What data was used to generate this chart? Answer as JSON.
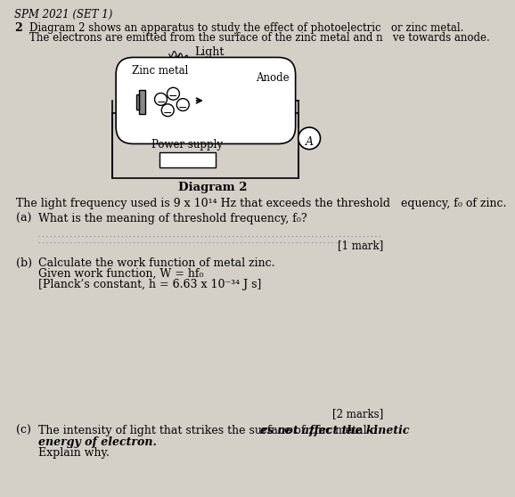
{
  "bg_color": "#d4d0c8",
  "title": "SPM 2021 (SET 1)",
  "q_number": "2",
  "intro1": "Diagram 2 shows an apparatus to study the effect of photoelectric   or zinc metal.",
  "intro2": "The electrons are emitted from the surface of the zinc metal and n   ve towards anode.",
  "light_label": "Light",
  "zinc_label": "Zinc metal",
  "anode_label": "Anode",
  "power_label": "Power supply",
  "diagram_label": "Diagram 2",
  "freq_line": "The light frequency used is 9 x 10¹⁴ Hz that exceeds the threshold   equency, f₀ of zinc.",
  "qa_label": "(a)",
  "qa_text": "What is the meaning of threshold frequency, f₀?",
  "qa_mark": "[1 mark]",
  "qb_label": "(b)",
  "qb_line1": "Calculate the work function of metal zinc.",
  "qb_line2": "Given work function, W = hf₀",
  "qb_line3": "[Planck’s constant, h = 6.63 x 10⁻³⁴ J s]",
  "qb_mark": "[2 marks]",
  "qc_label": "(c)",
  "qc_line1a": "The intensity of light that strikes the surface of zinc metal d",
  "qc_line1b": "es not affect the kinetic",
  "qc_line2": "energy of electron.",
  "qc_line3": "Explain why."
}
